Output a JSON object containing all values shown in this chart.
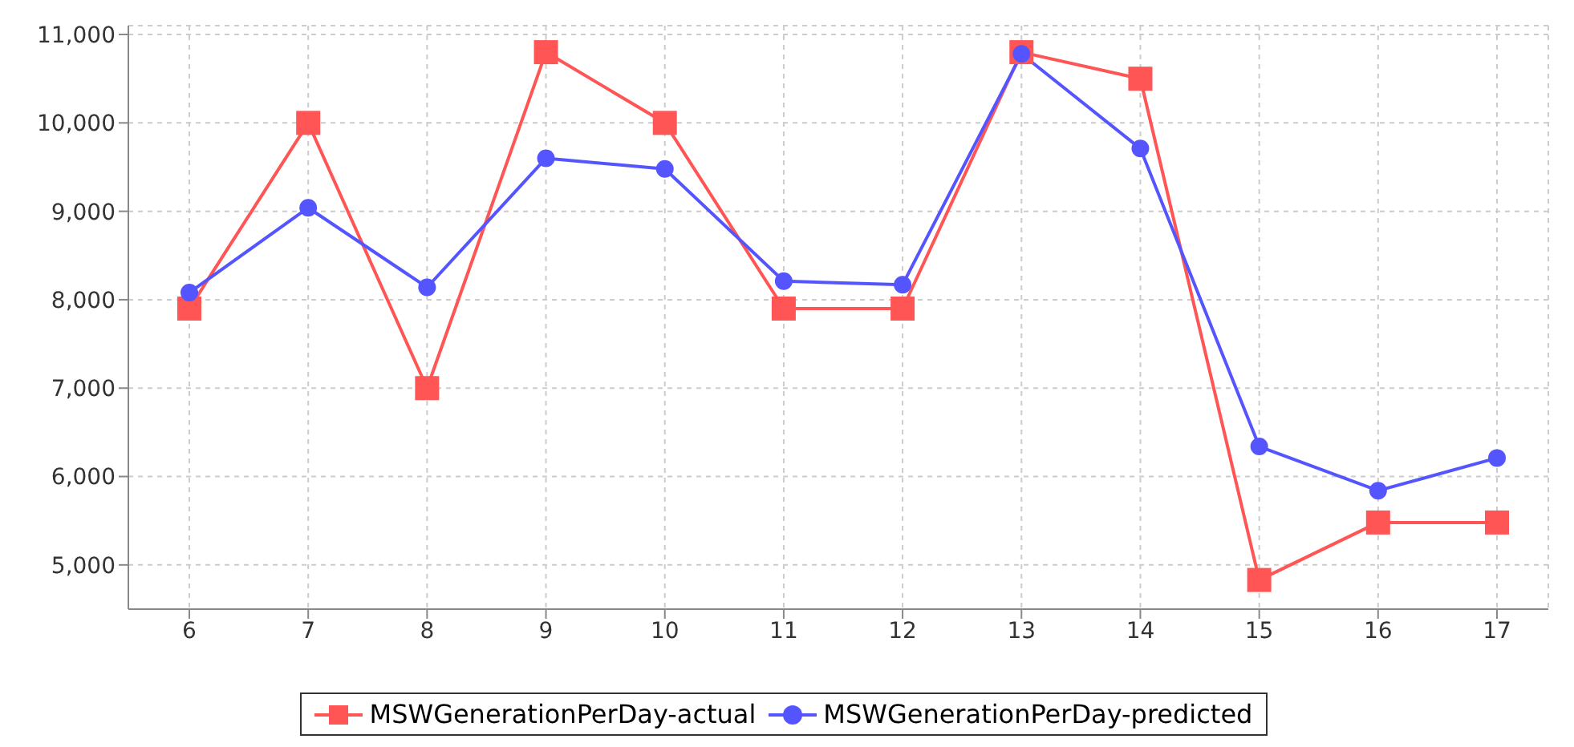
{
  "chart_data": {
    "type": "line",
    "categories": [
      "6",
      "7",
      "8",
      "9",
      "10",
      "11",
      "12",
      "13",
      "14",
      "15",
      "16",
      "17"
    ],
    "series": [
      {
        "name": "MSWGenerationPerDay-actual",
        "color": "#ff5555",
        "marker": "square",
        "values": [
          7900,
          10000,
          7000,
          10800,
          10000,
          7900,
          7900,
          10800,
          10500,
          4830,
          5480,
          5480
        ]
      },
      {
        "name": "MSWGenerationPerDay-predicted",
        "color": "#5555ff",
        "marker": "circle",
        "values": [
          8080,
          9040,
          8140,
          9600,
          9480,
          8210,
          8170,
          10780,
          9710,
          6340,
          5840,
          6210
        ]
      }
    ],
    "ylim": [
      4500,
      11100
    ],
    "yticks": [
      {
        "value": 5000,
        "label": "5,000"
      },
      {
        "value": 6000,
        "label": "6,000"
      },
      {
        "value": 7000,
        "label": "7,000"
      },
      {
        "value": 8000,
        "label": "8,000"
      },
      {
        "value": 9000,
        "label": "9,000"
      },
      {
        "value": 10000,
        "label": "10,000"
      },
      {
        "value": 11000,
        "label": "11,000"
      }
    ],
    "grid": true,
    "legend": "bottom"
  }
}
